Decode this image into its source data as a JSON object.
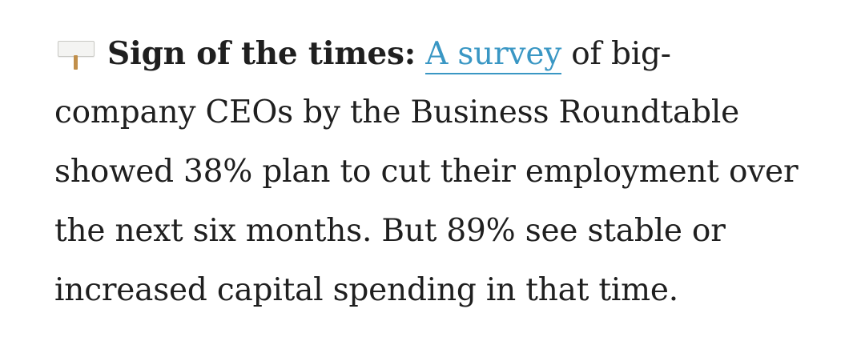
{
  "article": {
    "icon": "sign-post-icon",
    "lead_label": "Sign of the times:",
    "link_text": "A survey",
    "line1_rest": "of big-",
    "line2": "company CEOs by the Business Roundtable",
    "line3": "showed 38% plan to cut their employment over",
    "line4": "the next six months. But 89% see stable or",
    "line5": "increased capital spending in that time."
  },
  "colors": {
    "text": "#1f1f1f",
    "link": "#3a97c4",
    "post": "#c18f4a"
  }
}
